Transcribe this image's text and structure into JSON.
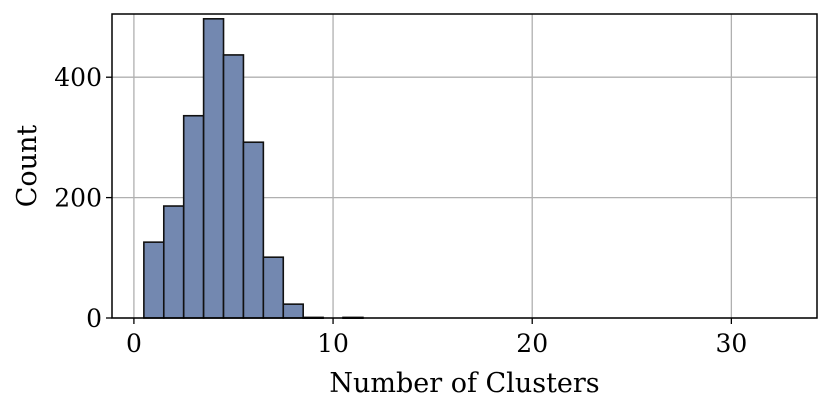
{
  "chart_data": {
    "type": "bar",
    "subtype": "histogram",
    "title": "",
    "xlabel": "Number of Clusters",
    "ylabel": "Count",
    "xlim": [
      -1.1,
      34.3
    ],
    "ylim": [
      0,
      505
    ],
    "xticks": [
      0,
      10,
      20,
      30
    ],
    "yticks": [
      0,
      200,
      400
    ],
    "grid": true,
    "bar_color": "#7388b0",
    "edge_color": "#111111",
    "grid_color": "#b0b0b0",
    "bins": [
      {
        "x_start": 0.5,
        "x_end": 1.5,
        "count": 126
      },
      {
        "x_start": 1.5,
        "x_end": 2.5,
        "count": 186
      },
      {
        "x_start": 2.5,
        "x_end": 3.5,
        "count": 336
      },
      {
        "x_start": 3.5,
        "x_end": 4.5,
        "count": 497
      },
      {
        "x_start": 4.5,
        "x_end": 5.5,
        "count": 437
      },
      {
        "x_start": 5.5,
        "x_end": 6.5,
        "count": 292
      },
      {
        "x_start": 6.5,
        "x_end": 7.5,
        "count": 101
      },
      {
        "x_start": 7.5,
        "x_end": 8.5,
        "count": 23
      },
      {
        "x_start": 8.5,
        "x_end": 9.5,
        "count": 1
      },
      {
        "x_start": 9.5,
        "x_end": 10.5,
        "count": 0
      },
      {
        "x_start": 10.5,
        "x_end": 11.5,
        "count": 1
      }
    ]
  }
}
